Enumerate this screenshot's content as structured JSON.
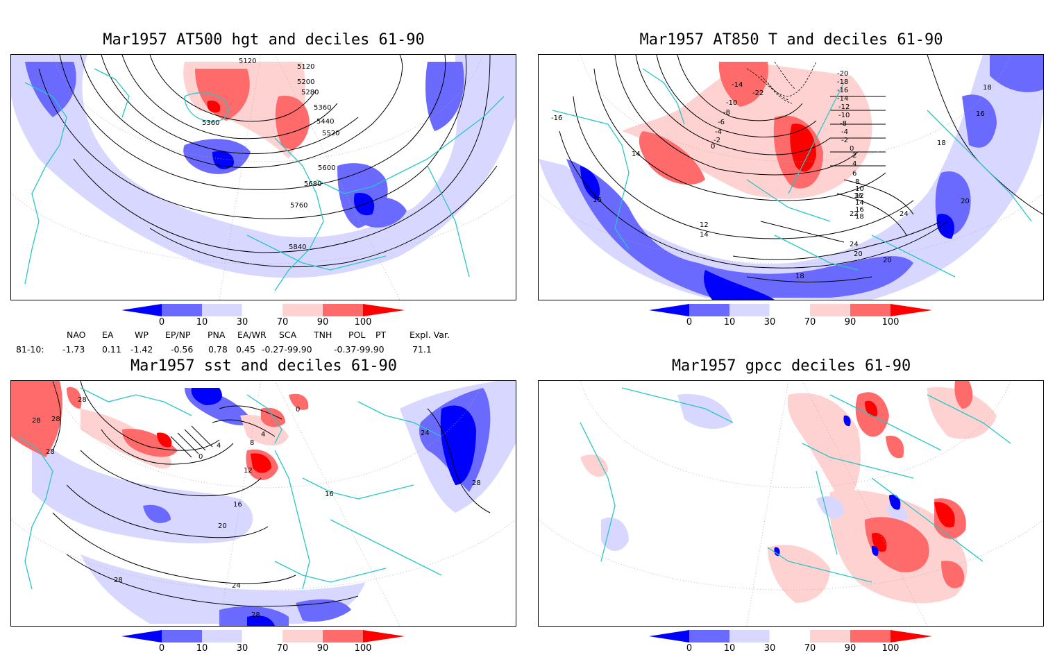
{
  "panels": [
    {
      "title": "Mar1957 AT500 hgt and deciles 61-90",
      "contour_labels": [
        "5120",
        "5120",
        "5200",
        "5280",
        "5360",
        "5360",
        "5440",
        "5520",
        "5600",
        "5680",
        "5760",
        "5840"
      ]
    },
    {
      "title": "Mar1957 AT850 T and deciles 61-90",
      "contour_labels": [
        "-14",
        "-10",
        "-8",
        "-6",
        "-4",
        "-2",
        "0",
        "-22",
        "-20",
        "-18",
        "-16",
        "-14",
        "-12",
        "-10",
        "-8",
        "-4",
        "-2",
        "0",
        "2",
        "4",
        "6",
        "8",
        "10",
        "12",
        "14",
        "16",
        "18",
        "22",
        "24",
        "20",
        "16",
        "16",
        "18",
        "18",
        "14",
        "12",
        "14",
        "20",
        "20",
        "-16",
        "16",
        "18",
        "24"
      ]
    },
    {
      "title": "Mar1957 sst and deciles 61-90",
      "contour_labels": [
        "28",
        "28",
        "28",
        "28",
        "0",
        "4",
        "8",
        "12",
        "16",
        "20",
        "24",
        "28",
        "28",
        "16",
        "24",
        "28",
        "0",
        "4"
      ]
    },
    {
      "title": "Mar1957 gpcc deciles 61-90",
      "contour_labels": []
    }
  ],
  "colorbar": {
    "ticks": [
      "0",
      "10",
      "30",
      "70",
      "90",
      "100"
    ],
    "colors": {
      "c1": "#0000ff",
      "c2": "#6a6aff",
      "c3": "#d7d7ff",
      "c4": "#ffffff",
      "c5": "#ffd2d2",
      "c6": "#ff6a6a",
      "c7": "#ff0000"
    }
  },
  "indices": {
    "headers": [
      "NAO",
      "EA",
      "WP",
      "EP/NP",
      "PNA",
      "EA/WR",
      "SCA",
      "TNH",
      "POL",
      "PT",
      "Expl. Var."
    ],
    "row_label": "81-10:",
    "values": [
      "-1.73",
      "0.11",
      "-1.42",
      "-0.56",
      "0.78",
      "0.45",
      "-0.27-99.90",
      "-0.37-99.90",
      "71.1"
    ]
  }
}
